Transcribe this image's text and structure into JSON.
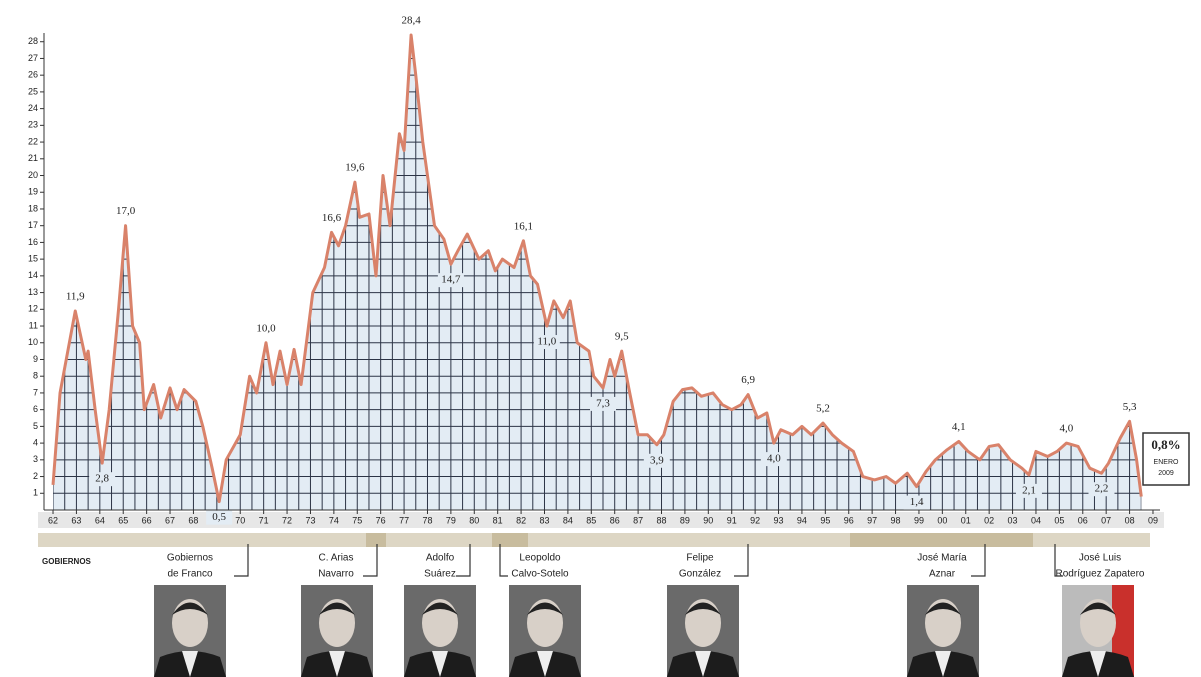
{
  "chart_data": {
    "type": "area-grid",
    "color": "#d9826a",
    "fill": "#e3ecf4",
    "x": [
      1962.0,
      1962.3,
      1962.95,
      1963.4,
      1963.5,
      1963.8,
      1964.1,
      1964.4,
      1964.8,
      1965.1,
      1965.4,
      1965.7,
      1965.9,
      1966.3,
      1966.6,
      1967.0,
      1967.3,
      1967.6,
      1968.1,
      1968.4,
      1968.8,
      1969.1,
      1969.4,
      1970.0,
      1970.4,
      1970.7,
      1971.1,
      1971.4,
      1971.7,
      1972.0,
      1972.3,
      1972.6,
      1973.1,
      1973.6,
      1973.9,
      1974.2,
      1974.5,
      1974.9,
      1975.1,
      1975.5,
      1975.8,
      1976.1,
      1976.4,
      1976.8,
      1977.0,
      1977.3,
      1977.5,
      1977.8,
      1978.3,
      1978.7,
      1979.0,
      1979.3,
      1979.7,
      1980.2,
      1980.6,
      1980.9,
      1981.2,
      1981.7,
      1982.1,
      1982.4,
      1982.7,
      1983.1,
      1983.4,
      1983.8,
      1984.1,
      1984.4,
      1984.9,
      1985.1,
      1985.5,
      1985.8,
      1986.0,
      1986.3,
      1986.6,
      1987.0,
      1987.4,
      1987.8,
      1988.1,
      1988.5,
      1988.9,
      1989.3,
      1989.7,
      1990.2,
      1990.6,
      1991.0,
      1991.4,
      1991.7,
      1992.1,
      1992.5,
      1992.8,
      1993.1,
      1993.6,
      1994.0,
      1994.4,
      1994.9,
      1995.3,
      1995.7,
      1996.2,
      1996.6,
      1997.1,
      1997.6,
      1998.0,
      1998.5,
      1998.9,
      1999.3,
      1999.7,
      2000.2,
      2000.7,
      2001.1,
      2001.6,
      2002.0,
      2002.4,
      2002.9,
      2003.4,
      2003.7,
      2004.0,
      2004.5,
      2004.9,
      2005.3,
      2005.8,
      2006.3,
      2006.8,
      2007.1,
      2007.6,
      2008.0,
      2008.3,
      2008.5
    ],
    "values": [
      1.5,
      7,
      11.9,
      9,
      9.5,
      6,
      2.8,
      6,
      12,
      17.0,
      11,
      10,
      6,
      7.5,
      5.5,
      7.3,
      6,
      7.2,
      6.5,
      5,
      2.5,
      0.5,
      3,
      4.5,
      8,
      7,
      10.0,
      7.5,
      9.5,
      7.5,
      9.6,
      7.5,
      13,
      14.5,
      16.6,
      15.8,
      17,
      19.6,
      17.5,
      17.7,
      14,
      20,
      17,
      22.5,
      21.5,
      28.4,
      26,
      22,
      17,
      16.2,
      14.7,
      15.5,
      16.5,
      15,
      15.5,
      14.3,
      15,
      14.5,
      16.1,
      14,
      13.5,
      11.0,
      12.5,
      11.5,
      12.5,
      10,
      9.5,
      8,
      7.3,
      9,
      8,
      9.5,
      7.3,
      4.5,
      4.5,
      3.9,
      4.5,
      6.5,
      7.2,
      7.3,
      6.8,
      7.0,
      6.3,
      6.0,
      6.3,
      6.9,
      5.5,
      5.8,
      4.0,
      4.8,
      4.5,
      5.0,
      4.5,
      5.2,
      4.5,
      4.0,
      3.5,
      2.0,
      1.8,
      2.0,
      1.6,
      2.2,
      1.4,
      2.3,
      3.0,
      3.6,
      4.1,
      3.5,
      3.0,
      3.8,
      3.9,
      3.0,
      2.5,
      2.1,
      3.5,
      3.2,
      3.5,
      4.0,
      3.8,
      2.5,
      2.2,
      2.8,
      4.3,
      5.3,
      3.0,
      0.8
    ],
    "xlim": [
      1961.7,
      2009.3
    ],
    "xticks": [
      {
        "value": 1962,
        "label": "62"
      },
      {
        "value": 1963,
        "label": "63"
      },
      {
        "value": 1964,
        "label": "64"
      },
      {
        "value": 1965,
        "label": "65"
      },
      {
        "value": 1966,
        "label": "66"
      },
      {
        "value": 1967,
        "label": "67"
      },
      {
        "value": 1968,
        "label": "68"
      },
      {
        "value": 1969,
        "label": "69"
      },
      {
        "value": 1970,
        "label": "70"
      },
      {
        "value": 1971,
        "label": "71"
      },
      {
        "value": 1972,
        "label": "72"
      },
      {
        "value": 1973,
        "label": "73"
      },
      {
        "value": 1974,
        "label": "74"
      },
      {
        "value": 1975,
        "label": "75"
      },
      {
        "value": 1976,
        "label": "76"
      },
      {
        "value": 1977,
        "label": "77"
      },
      {
        "value": 1978,
        "label": "78"
      },
      {
        "value": 1979,
        "label": "79"
      },
      {
        "value": 1980,
        "label": "80"
      },
      {
        "value": 1981,
        "label": "81"
      },
      {
        "value": 1982,
        "label": "82"
      },
      {
        "value": 1983,
        "label": "83"
      },
      {
        "value": 1984,
        "label": "84"
      },
      {
        "value": 1985,
        "label": "85"
      },
      {
        "value": 1986,
        "label": "86"
      },
      {
        "value": 1987,
        "label": "87"
      },
      {
        "value": 1988,
        "label": "88"
      },
      {
        "value": 1989,
        "label": "89"
      },
      {
        "value": 1990,
        "label": "90"
      },
      {
        "value": 1991,
        "label": "91"
      },
      {
        "value": 1992,
        "label": "92"
      },
      {
        "value": 1993,
        "label": "93"
      },
      {
        "value": 1994,
        "label": "94"
      },
      {
        "value": 1995,
        "label": "95"
      },
      {
        "value": 1996,
        "label": "96"
      },
      {
        "value": 1997,
        "label": "97"
      },
      {
        "value": 1998,
        "label": "98"
      },
      {
        "value": 1999,
        "label": "99"
      },
      {
        "value": 2000,
        "label": "00"
      },
      {
        "value": 2001,
        "label": "01"
      },
      {
        "value": 2002,
        "label": "02"
      },
      {
        "value": 2003,
        "label": "03"
      },
      {
        "value": 2004,
        "label": "04"
      },
      {
        "value": 2005,
        "label": "05"
      },
      {
        "value": 2006,
        "label": "06"
      },
      {
        "value": 2007,
        "label": "07"
      },
      {
        "value": 2008,
        "label": "08"
      },
      {
        "value": 2009,
        "label": "09"
      }
    ],
    "ylim": [
      0,
      29
    ],
    "yticks": [
      1,
      2,
      3,
      4,
      5,
      6,
      7,
      8,
      9,
      10,
      11,
      12,
      13,
      14,
      15,
      16,
      17,
      18,
      19,
      20,
      21,
      22,
      23,
      24,
      25,
      26,
      27,
      28
    ],
    "grid": true,
    "annotations": [
      {
        "x": 1962.95,
        "y": 11.9,
        "label": "11,9"
      },
      {
        "x": 1965.1,
        "y": 17.0,
        "label": "17,0"
      },
      {
        "x": 1964.1,
        "y": 2.8,
        "label": "2,8"
      },
      {
        "x": 1969.1,
        "y": 0.5,
        "label": "0,5"
      },
      {
        "x": 1971.1,
        "y": 10.0,
        "label": "10,0"
      },
      {
        "x": 1973.9,
        "y": 16.6,
        "label": "16,6"
      },
      {
        "x": 1974.9,
        "y": 19.6,
        "label": "19,6"
      },
      {
        "x": 1977.3,
        "y": 28.4,
        "label": "28,4"
      },
      {
        "x": 1979.0,
        "y": 14.7,
        "label": "14,7"
      },
      {
        "x": 1982.1,
        "y": 16.1,
        "label": "16,1"
      },
      {
        "x": 1983.1,
        "y": 11.0,
        "label": "11,0"
      },
      {
        "x": 1985.5,
        "y": 7.3,
        "label": "7,3"
      },
      {
        "x": 1986.3,
        "y": 9.5,
        "label": "9,5"
      },
      {
        "x": 1987.8,
        "y": 3.9,
        "label": "3,9"
      },
      {
        "x": 1991.7,
        "y": 6.9,
        "label": "6,9"
      },
      {
        "x": 1992.8,
        "y": 4.0,
        "label": "4,0"
      },
      {
        "x": 1994.9,
        "y": 5.2,
        "label": "5,2"
      },
      {
        "x": 1998.9,
        "y": 1.4,
        "label": "1,4"
      },
      {
        "x": 2000.7,
        "y": 4.1,
        "label": "4,1"
      },
      {
        "x": 2003.7,
        "y": 2.1,
        "label": "2,1"
      },
      {
        "x": 2005.3,
        "y": 4.0,
        "label": "4,0"
      },
      {
        "x": 2006.8,
        "y": 2.2,
        "label": "2,2"
      },
      {
        "x": 2008.0,
        "y": 5.3,
        "label": "5,3"
      }
    ],
    "note": {
      "label": "0,8%",
      "lines": [
        "ENERO",
        "2009"
      ]
    },
    "governments_label": "GOBIERNOS",
    "governments": [
      {
        "lines": [
          "Gobiernos",
          "de Franco"
        ]
      },
      {
        "lines": [
          "C. Arias",
          "Navarro"
        ]
      },
      {
        "lines": [
          "Adolfo",
          "Suárez"
        ]
      },
      {
        "lines": [
          "Leopoldo",
          "Calvo-Sotelo"
        ]
      },
      {
        "lines": [
          "Felipe",
          "González"
        ]
      },
      {
        "lines": [
          "José María",
          "Aznar"
        ]
      },
      {
        "lines": [
          "José Luis",
          "Rodríguez Zapatero"
        ]
      }
    ]
  }
}
